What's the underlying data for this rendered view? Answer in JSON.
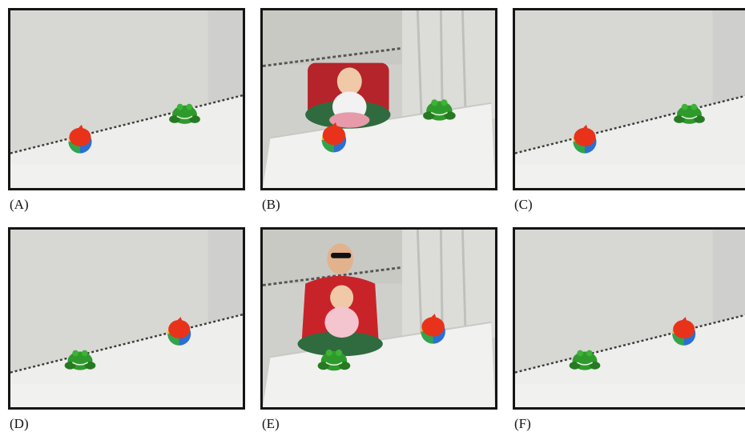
{
  "panels": [
    {
      "id": "A",
      "label": "(A)",
      "scene": "empty",
      "frog": "right",
      "ball": "left"
    },
    {
      "id": "B",
      "label": "(B)",
      "scene": "baby",
      "frog": "right",
      "ball": "left"
    },
    {
      "id": "C",
      "label": "(C)",
      "scene": "empty",
      "frog": "right",
      "ball": "left"
    },
    {
      "id": "D",
      "label": "(D)",
      "scene": "empty",
      "frog": "left",
      "ball": "right"
    },
    {
      "id": "E",
      "label": "(E)",
      "scene": "adult-with-baby",
      "frog": "left",
      "ball": "right"
    },
    {
      "id": "F",
      "label": "(F)",
      "scene": "empty",
      "frog": "left",
      "ball": "right"
    }
  ],
  "colors": {
    "backdrop": "#d6d6d2",
    "table": "#ececea",
    "frame": "#151515",
    "frog": "#2f9a2c",
    "ball_red": "#e8331a"
  }
}
